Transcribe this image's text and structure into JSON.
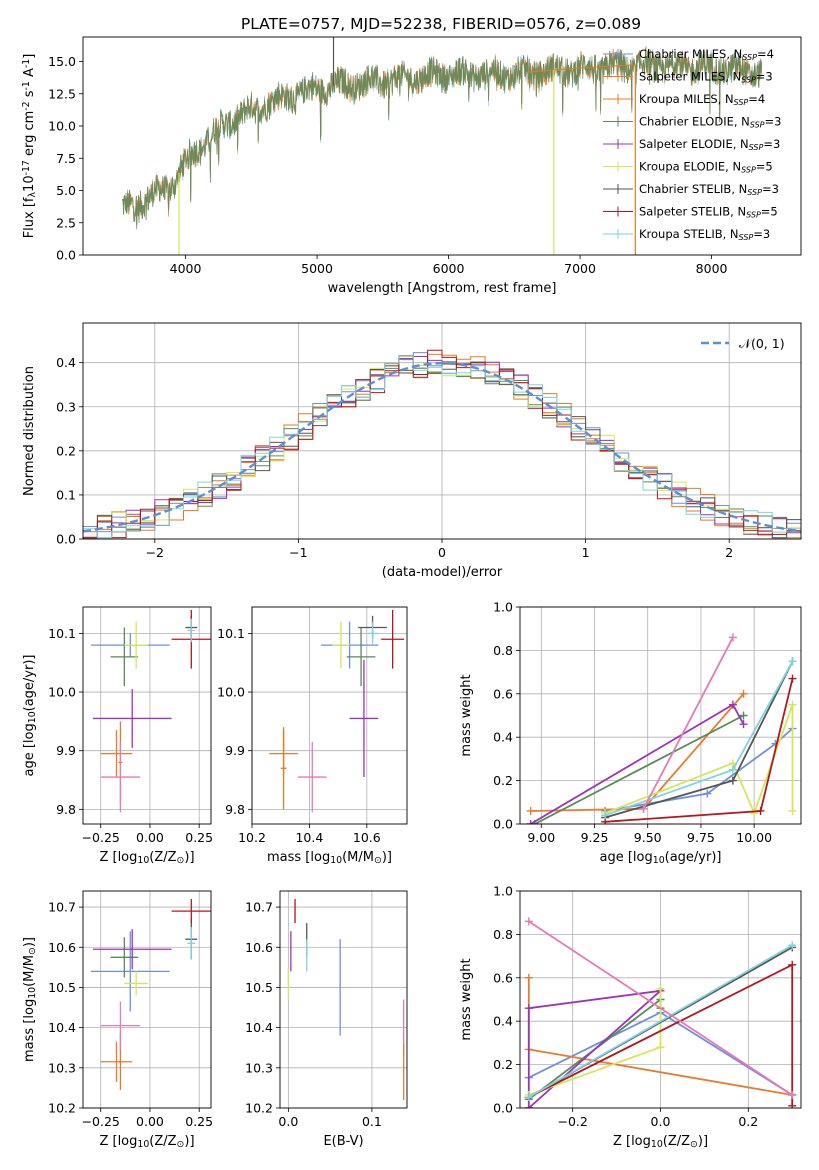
{
  "figure": {
    "title": "PLATE=0757, MJD=52238, FIBERID=0576, z=0.089"
  },
  "colors": {
    "chabrier_miles": "#6f8fe0",
    "salpeter_miles": "#e87b2d",
    "kroupa_miles": "#e07c22",
    "chabrier_elodie": "#5a8a5a",
    "salpeter_elodie": "#9b34b8",
    "kroupa_elodie": "#d6e65a",
    "chabrier_stelib": "#555555",
    "salpeter_stelib": "#b3161f",
    "kroupa_stelib": "#7fd3e0",
    "pink": "#e47ab8",
    "gaussian": "#5b8fd6",
    "grid": "#b0b0b0"
  },
  "chart_data": [
    {
      "id": "spectrum",
      "type": "line",
      "title": "PLATE=0757, MJD=52238, FIBERID=0576, z=0.089",
      "xlabel": "wavelength [Angstrom, rest frame]",
      "ylabel": "Flux [f$_\\lambda$10$^{-17}$ erg cm$^{-2}$ s$^{-1}$ A$^{-1}$]",
      "xlim": [
        3220,
        8680
      ],
      "ylim": [
        0,
        16.9
      ],
      "xticks": [
        4000,
        5000,
        6000,
        7000,
        8000
      ],
      "yticks": [
        0.0,
        2.5,
        5.0,
        7.5,
        10.0,
        12.5,
        15.0
      ],
      "ytick_labels": [
        "0.0",
        "2.5",
        "5.0",
        "7.5",
        "10.0",
        "12.5",
        "15.0"
      ],
      "grid": false,
      "legend_position": "right",
      "legend": [
        {
          "base": "Chabrier MILES, N",
          "sub": "SSP",
          "tail": "=4",
          "color": "chabrier_miles"
        },
        {
          "base": "Salpeter MILES, N",
          "sub": "SSP",
          "tail": "=3",
          "color": "salpeter_miles"
        },
        {
          "base": "Kroupa MILES, N",
          "sub": "SSP",
          "tail": "=4",
          "color": "kroupa_miles"
        },
        {
          "base": "Chabrier ELODIE, N",
          "sub": "SSP",
          "tail": "=3",
          "color": "chabrier_elodie"
        },
        {
          "base": "Salpeter ELODIE, N",
          "sub": "SSP",
          "tail": "=3",
          "color": "salpeter_elodie"
        },
        {
          "base": "Kroupa ELODIE, N",
          "sub": "SSP",
          "tail": "=5",
          "color": "kroupa_elodie"
        },
        {
          "base": "Chabrier STELIB, N",
          "sub": "SSP",
          "tail": "=3",
          "color": "chabrier_stelib"
        },
        {
          "base": "Salpeter STELIB, N",
          "sub": "SSP",
          "tail": "=5",
          "color": "salpeter_stelib"
        },
        {
          "base": "Kroupa STELIB, N",
          "sub": "SSP",
          "tail": "=3",
          "color": "kroupa_stelib"
        }
      ],
      "continuum": [
        [
          3520,
          3.6
        ],
        [
          3700,
          4.4
        ],
        [
          3900,
          5.6
        ],
        [
          4050,
          7.9
        ],
        [
          4300,
          10.3
        ],
        [
          4600,
          11.8
        ],
        [
          5000,
          13.0
        ],
        [
          5500,
          13.6
        ],
        [
          6000,
          14.1
        ],
        [
          6500,
          14.1
        ],
        [
          7000,
          14.5
        ],
        [
          7500,
          14.8
        ],
        [
          8000,
          14.6
        ],
        [
          8400,
          14.2
        ]
      ],
      "spikes": [
        [
          5125,
          16.9
        ],
        [
          6800,
          0
        ],
        [
          7420,
          0
        ],
        [
          3950,
          0
        ]
      ]
    },
    {
      "id": "residuals",
      "type": "histogram",
      "xlabel": "(data-model)/error",
      "ylabel": "Normed distribution",
      "xlim": [
        -2.5,
        2.5
      ],
      "ylim": [
        0,
        0.49
      ],
      "xticks": [
        -2,
        -1,
        0,
        1,
        2
      ],
      "xtick_labels": [
        "−2",
        "−1",
        "0",
        "1",
        "2"
      ],
      "yticks": [
        0.0,
        0.1,
        0.2,
        0.3,
        0.4
      ],
      "ytick_labels": [
        "0.0",
        "0.1",
        "0.2",
        "0.3",
        "0.4"
      ],
      "grid": true,
      "bin_width": 0.1,
      "legend": [
        {
          "label": "𝒩(0, 1)",
          "color": "gaussian",
          "style": "dashed"
        }
      ],
      "gaussian": {
        "mean": 0,
        "sigma": 1
      }
    },
    {
      "id": "age_vs_Z",
      "type": "errorbar",
      "xlabel": "Z [log$_{10}$(Z/Z$_\\odot$)]",
      "ylabel": "age  [log$_{10}$(age/yr)]",
      "xlim": [
        -0.34,
        0.31
      ],
      "ylim": [
        9.775,
        10.145
      ],
      "xticks": [
        -0.25,
        0.0,
        0.25
      ],
      "xtick_labels": [
        "−0.25",
        "0.00",
        "0.25"
      ],
      "yticks": [
        9.8,
        9.9,
        10.0,
        10.1
      ],
      "ytick_labels": [
        "9.8",
        "9.9",
        "10.0",
        "10.1"
      ],
      "grid": true,
      "points": [
        {
          "x": -0.1,
          "y": 10.08,
          "xerr": 0.2,
          "yerr": 0.02,
          "color": "chabrier_miles"
        },
        {
          "x": -0.17,
          "y": 9.895,
          "xerr": 0.08,
          "yerr": 0.04,
          "color": "salpeter_miles"
        },
        {
          "x": -0.15,
          "y": 9.88,
          "xerr": 0.01,
          "yerr": 0.07,
          "color": "kroupa_miles"
        },
        {
          "x": -0.13,
          "y": 10.06,
          "xerr": 0.07,
          "yerr": 0.05,
          "color": "chabrier_elodie"
        },
        {
          "x": -0.09,
          "y": 9.955,
          "xerr": 0.2,
          "yerr": 0.05,
          "color": "salpeter_elodie"
        },
        {
          "x": -0.07,
          "y": 10.08,
          "xerr": 0.06,
          "yerr": 0.04,
          "color": "kroupa_elodie"
        },
        {
          "x": 0.21,
          "y": 10.11,
          "xerr": 0.03,
          "yerr": 0.02,
          "color": "chabrier_stelib"
        },
        {
          "x": 0.21,
          "y": 10.09,
          "xerr": 0.1,
          "yerr": 0.05,
          "color": "salpeter_stelib"
        },
        {
          "x": 0.21,
          "y": 10.105,
          "xerr": 0.02,
          "yerr": 0.02,
          "color": "kroupa_stelib"
        },
        {
          "x": -0.15,
          "y": 9.855,
          "xerr": 0.1,
          "yerr": 0.06,
          "color": "pink"
        }
      ]
    },
    {
      "id": "age_vs_mass",
      "type": "errorbar",
      "xlabel": "mass [log$_{10}$(M/M$_\\odot$)]",
      "xlim": [
        10.2,
        10.74
      ],
      "ylim": [
        9.775,
        10.145
      ],
      "xticks": [
        10.2,
        10.4,
        10.6
      ],
      "xtick_labels": [
        "10.2",
        "10.4",
        "10.6"
      ],
      "yticks": [
        9.8,
        9.9,
        10.0,
        10.1
      ],
      "ytick_labels": [
        "9.8",
        "9.9",
        "10.0",
        "10.1"
      ],
      "grid": true,
      "points": [
        {
          "x": 10.54,
          "y": 10.08,
          "xerr": 0.1,
          "yerr": 0.04,
          "color": "chabrier_miles"
        },
        {
          "x": 10.31,
          "y": 9.895,
          "xerr": 0.05,
          "yerr": 0.04,
          "color": "salpeter_miles"
        },
        {
          "x": 10.31,
          "y": 9.87,
          "xerr": 0.01,
          "yerr": 0.07,
          "color": "kroupa_miles"
        },
        {
          "x": 10.58,
          "y": 10.06,
          "xerr": 0.05,
          "yerr": 0.05,
          "color": "chabrier_elodie"
        },
        {
          "x": 10.59,
          "y": 9.955,
          "xerr": 0.05,
          "yerr": 0.1,
          "color": "salpeter_elodie"
        },
        {
          "x": 10.51,
          "y": 10.08,
          "xerr": 0.03,
          "yerr": 0.04,
          "color": "kroupa_elodie"
        },
        {
          "x": 10.62,
          "y": 10.11,
          "xerr": 0.05,
          "yerr": 0.02,
          "color": "chabrier_stelib"
        },
        {
          "x": 10.69,
          "y": 10.09,
          "xerr": 0.04,
          "yerr": 0.05,
          "color": "salpeter_stelib"
        },
        {
          "x": 10.62,
          "y": 10.1,
          "xerr": 0.02,
          "yerr": 0.02,
          "color": "kroupa_stelib"
        },
        {
          "x": 10.41,
          "y": 9.855,
          "xerr": 0.05,
          "yerr": 0.06,
          "color": "pink"
        }
      ]
    },
    {
      "id": "weight_vs_age",
      "type": "line",
      "xlabel": "age  [log$_{10}$(age/yr)]",
      "ylabel": "mass weight",
      "xlim": [
        8.9,
        10.22
      ],
      "ylim": [
        0,
        1.0
      ],
      "xticks": [
        9.0,
        9.25,
        9.5,
        9.75,
        10.0
      ],
      "xtick_labels": [
        "9.00",
        "9.25",
        "9.50",
        "9.75",
        "10.00"
      ],
      "yticks": [
        0.0,
        0.2,
        0.4,
        0.6,
        0.8,
        1.0
      ],
      "ytick_labels": [
        "0.0",
        "0.2",
        "0.4",
        "0.6",
        "0.8",
        "1.0"
      ],
      "grid": true,
      "series": [
        {
          "color": "chabrier_miles",
          "x": [
            9.3,
            9.78,
            10.1,
            10.18
          ],
          "y": [
            0.06,
            0.14,
            0.37,
            0.44
          ]
        },
        {
          "color": "salpeter_miles",
          "x": [
            8.95,
            9.48,
            9.95
          ],
          "y": [
            0.06,
            0.07,
            0.6
          ]
        },
        {
          "color": "chabrier_elodie",
          "x": [
            8.97,
            9.95
          ],
          "y": [
            0.0,
            0.5
          ]
        },
        {
          "color": "salpeter_elodie",
          "x": [
            8.95,
            9.9,
            9.95
          ],
          "y": [
            0.0,
            0.55,
            0.46
          ]
        },
        {
          "color": "kroupa_elodie",
          "x": [
            9.3,
            9.9,
            10.0,
            10.18,
            10.18
          ],
          "y": [
            0.05,
            0.28,
            0.05,
            0.55,
            0.06
          ]
        },
        {
          "color": "chabrier_stelib",
          "x": [
            9.3,
            9.9,
            10.18
          ],
          "y": [
            0.03,
            0.2,
            0.75
          ]
        },
        {
          "color": "salpeter_stelib",
          "x": [
            9.3,
            10.03,
            10.18
          ],
          "y": [
            0.01,
            0.06,
            0.67
          ]
        },
        {
          "color": "kroupa_stelib",
          "x": [
            9.3,
            9.9,
            10.18
          ],
          "y": [
            0.04,
            0.25,
            0.75
          ]
        },
        {
          "color": "pink",
          "x": [
            9.48,
            9.9
          ],
          "y": [
            0.07,
            0.86
          ]
        }
      ]
    },
    {
      "id": "mass_vs_Z",
      "type": "errorbar",
      "xlabel": "Z [log$_{10}$(Z/Z$_\\odot$)]",
      "ylabel": "mass [log$_{10}$(M/M$_\\odot$)]",
      "xlim": [
        -0.34,
        0.31
      ],
      "ylim": [
        10.2,
        10.74
      ],
      "xticks": [
        -0.25,
        0.0,
        0.25
      ],
      "xtick_labels": [
        "−0.25",
        "0.00",
        "0.25"
      ],
      "yticks": [
        10.2,
        10.3,
        10.4,
        10.5,
        10.6,
        10.7
      ],
      "ytick_labels": [
        "10.2",
        "10.3",
        "10.4",
        "10.5",
        "10.6",
        "10.7"
      ],
      "grid": true,
      "points": [
        {
          "x": -0.1,
          "y": 10.54,
          "xerr": 0.2,
          "yerr": 0.1,
          "color": "chabrier_miles"
        },
        {
          "x": -0.17,
          "y": 10.315,
          "xerr": 0.08,
          "yerr": 0.05,
          "color": "salpeter_miles"
        },
        {
          "x": -0.15,
          "y": 10.315,
          "xerr": 0.01,
          "yerr": 0.07,
          "color": "kroupa_miles"
        },
        {
          "x": -0.13,
          "y": 10.575,
          "xerr": 0.07,
          "yerr": 0.05,
          "color": "chabrier_elodie"
        },
        {
          "x": -0.09,
          "y": 10.595,
          "xerr": 0.2,
          "yerr": 0.05,
          "color": "salpeter_elodie"
        },
        {
          "x": -0.07,
          "y": 10.51,
          "xerr": 0.06,
          "yerr": 0.03,
          "color": "kroupa_elodie"
        },
        {
          "x": 0.21,
          "y": 10.62,
          "xerr": 0.03,
          "yerr": 0.05,
          "color": "chabrier_stelib"
        },
        {
          "x": 0.21,
          "y": 10.69,
          "xerr": 0.1,
          "yerr": 0.03,
          "color": "salpeter_stelib"
        },
        {
          "x": 0.21,
          "y": 10.61,
          "xerr": 0.02,
          "yerr": 0.04,
          "color": "kroupa_stelib"
        },
        {
          "x": -0.15,
          "y": 10.405,
          "xerr": 0.1,
          "yerr": 0.06,
          "color": "pink"
        }
      ]
    },
    {
      "id": "mass_vs_ebv",
      "type": "errorbar",
      "xlabel": "E(B-V)",
      "xlim": [
        -0.01,
        0.142
      ],
      "ylim": [
        10.2,
        10.74
      ],
      "xticks": [
        0.0,
        0.1
      ],
      "xtick_labels": [
        "0.0",
        "0.1"
      ],
      "yticks": [
        10.2,
        10.3,
        10.4,
        10.5,
        10.6,
        10.7
      ],
      "ytick_labels": [
        "10.2",
        "10.3",
        "10.4",
        "10.5",
        "10.6",
        "10.7"
      ],
      "grid": true,
      "points": [
        {
          "x": 0.0,
          "y": 10.51,
          "xerr": 0,
          "yerr": 0.04,
          "color": "kroupa_elodie"
        },
        {
          "x": 0.003,
          "y": 10.59,
          "xerr": 0,
          "yerr": 0.05,
          "color": "salpeter_elodie"
        },
        {
          "x": 0.008,
          "y": 10.69,
          "xerr": 0,
          "yerr": 0.03,
          "color": "salpeter_stelib"
        },
        {
          "x": 0.022,
          "y": 10.62,
          "xerr": 0,
          "yerr": 0.04,
          "color": "chabrier_stelib"
        },
        {
          "x": 0.022,
          "y": 10.58,
          "xerr": 0,
          "yerr": 0.04,
          "color": "kroupa_stelib"
        },
        {
          "x": 0.062,
          "y": 10.5,
          "xerr": 0,
          "yerr": 0.12,
          "color": "chabrier_miles"
        },
        {
          "x": 0.138,
          "y": 10.4,
          "xerr": 0,
          "yerr": 0.07,
          "color": "pink"
        },
        {
          "x": 0.138,
          "y": 10.29,
          "xerr": 0,
          "yerr": 0.07,
          "color": "salpeter_miles"
        }
      ]
    },
    {
      "id": "weight_vs_Z",
      "type": "line",
      "xlabel": "Z [log$_{10}$(Z/Z$_\\odot$)]",
      "ylabel": "mass weight",
      "xlim": [
        -0.32,
        0.32
      ],
      "ylim": [
        0,
        1.0
      ],
      "xticks": [
        -0.2,
        0.0,
        0.2
      ],
      "xtick_labels": [
        "−0.2",
        "0.0",
        "0.2"
      ],
      "yticks": [
        0.0,
        0.2,
        0.4,
        0.6,
        0.8,
        1.0
      ],
      "ytick_labels": [
        "0.0",
        "0.2",
        "0.4",
        "0.6",
        "0.8",
        "1.0"
      ],
      "grid": true,
      "series": [
        {
          "color": "chabrier_miles",
          "x": [
            -0.3,
            0.0,
            0.3
          ],
          "y": [
            0.14,
            0.44,
            0.06
          ]
        },
        {
          "color": "salpeter_miles",
          "x": [
            -0.3,
            -0.3,
            0.3
          ],
          "y": [
            0.6,
            0.27,
            0.06
          ]
        },
        {
          "color": "chabrier_elodie",
          "x": [
            -0.3,
            0.0,
            0.0
          ],
          "y": [
            0.04,
            0.5,
            0.46
          ]
        },
        {
          "color": "salpeter_elodie",
          "x": [
            -0.3,
            0.0,
            -0.3,
            -0.3
          ],
          "y": [
            0.0,
            0.54,
            0.46,
            0.0
          ]
        },
        {
          "color": "kroupa_elodie",
          "x": [
            -0.3,
            0.0,
            0.0
          ],
          "y": [
            0.06,
            0.28,
            0.55
          ]
        },
        {
          "color": "chabrier_stelib",
          "x": [
            -0.3,
            0.3
          ],
          "y": [
            0.05,
            0.74
          ]
        },
        {
          "color": "salpeter_stelib",
          "x": [
            -0.3,
            0.3,
            0.3
          ],
          "y": [
            0.05,
            0.66,
            0.01
          ]
        },
        {
          "color": "kroupa_stelib",
          "x": [
            -0.3,
            0.3
          ],
          "y": [
            0.05,
            0.75
          ]
        },
        {
          "color": "pink",
          "x": [
            -0.3,
            0.3
          ],
          "y": [
            0.86,
            0.06
          ]
        }
      ]
    }
  ]
}
